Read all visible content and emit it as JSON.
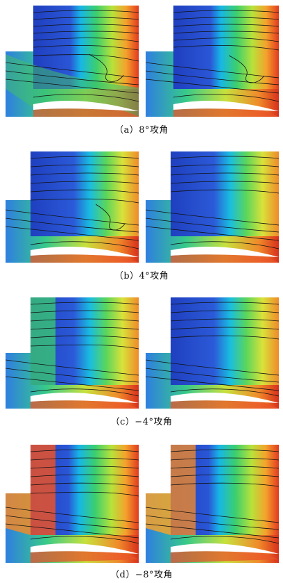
{
  "figure": {
    "captions": [
      "（a）8°攻角",
      "（b）4°攻角",
      "（c）−4°攻角",
      "（d）−8°攻角"
    ]
  }
}
